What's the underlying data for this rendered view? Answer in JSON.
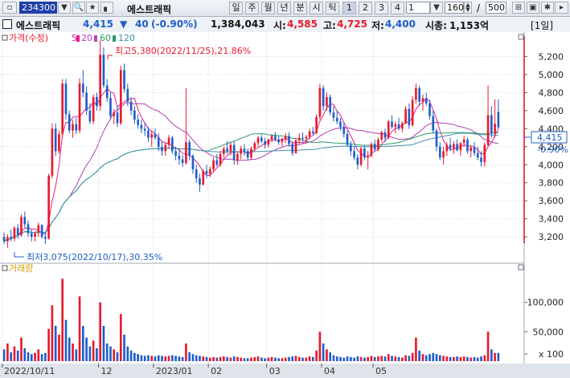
{
  "toolbar": {
    "stock_code": "234300",
    "stock_name": "에스트래픽",
    "period_buttons": [
      "일",
      "주",
      "월",
      "년",
      "분",
      "시",
      "틱"
    ],
    "number_buttons": [
      "1",
      "2",
      "3",
      "4"
    ],
    "interval_value": "1",
    "count_value": "160",
    "slash": "/",
    "total_value": "500"
  },
  "info": {
    "name": "에스트래픽",
    "price": "4,415",
    "arrow": "▼",
    "change": "40",
    "change_pct": "(-0.90%)",
    "volume": "1,384,043",
    "open_label": "시:",
    "open": "4,585",
    "high_label": "고:",
    "high": "4,725",
    "low_label": "저:",
    "low": "4,400",
    "mcap_label": "시총:",
    "mcap": "1,153억",
    "period_tag": "[1일]"
  },
  "legend": {
    "price_label": "가격(수정)",
    "ma": [
      {
        "label": "5",
        "color": "#e0208a"
      },
      {
        "label": "20",
        "color": "#c040c0"
      },
      {
        "label": "60",
        "color": "#2a9a6a"
      },
      {
        "label": "120",
        "color": "#3a8fb0"
      }
    ],
    "volume_label": "거래량"
  },
  "annotations": {
    "high": "최고5,380(2022/11/25),21.86%",
    "low": "최저3,075(2022/10/17),30.35%"
  },
  "price_axis": [
    "5,200",
    "5,000",
    "4,800",
    "4,600",
    "4,400",
    "4,200",
    "4,000",
    "3,800",
    "3,600",
    "3,400",
    "3,200"
  ],
  "current_price_tag": "4,415",
  "current_change_tag": "-0.90%",
  "volume_axis": [
    "100,000",
    "50,000",
    "x 100"
  ],
  "date_axis": [
    "2022/10/11",
    "12",
    "2023/01",
    "02",
    "03",
    "04",
    "05"
  ],
  "colors": {
    "up": "#e8192c",
    "down": "#1f5ec9",
    "ma5": "#e0208a",
    "ma20": "#b040b0",
    "ma60": "#2a9a6a",
    "ma120": "#3a8fb0",
    "highlight": "#e8192c"
  },
  "chart_data": {
    "type": "candlestick",
    "ylim": [
      3050,
      5400
    ],
    "volume_ylim": [
      0,
      150000
    ],
    "volume_unit": "x 100",
    "candles": [
      [
        3200,
        3250,
        3120,
        3150,
        20000
      ],
      [
        3150,
        3230,
        3080,
        3200,
        30000
      ],
      [
        3200,
        3280,
        3150,
        3180,
        15000
      ],
      [
        3180,
        3320,
        3150,
        3300,
        25000
      ],
      [
        3300,
        3340,
        3180,
        3220,
        18000
      ],
      [
        3220,
        3450,
        3200,
        3420,
        40000
      ],
      [
        3420,
        3480,
        3300,
        3340,
        22000
      ],
      [
        3340,
        3380,
        3200,
        3240,
        15000
      ],
      [
        3240,
        3290,
        3150,
        3200,
        12000
      ],
      [
        3200,
        3260,
        3150,
        3240,
        14000
      ],
      [
        3240,
        3360,
        3200,
        3330,
        20000
      ],
      [
        3330,
        3340,
        3180,
        3200,
        12000
      ],
      [
        3200,
        3260,
        3120,
        3180,
        14000
      ],
      [
        3180,
        3900,
        3170,
        3880,
        55000
      ],
      [
        3880,
        4460,
        3850,
        4400,
        95000
      ],
      [
        4400,
        4460,
        4100,
        4150,
        60000
      ],
      [
        4150,
        4380,
        4120,
        4340,
        45000
      ],
      [
        4340,
        4950,
        4300,
        4900,
        140000
      ],
      [
        4900,
        4950,
        4500,
        4560,
        70000
      ],
      [
        4560,
        4600,
        4350,
        4380,
        40000
      ],
      [
        4380,
        4500,
        4300,
        4450,
        30000
      ],
      [
        4450,
        4520,
        4340,
        4380,
        20000
      ],
      [
        4380,
        4960,
        4350,
        4900,
        110000
      ],
      [
        4900,
        5050,
        4750,
        4800,
        60000
      ],
      [
        4800,
        4870,
        4550,
        4600,
        40000
      ],
      [
        4600,
        4680,
        4450,
        4480,
        25000
      ],
      [
        4480,
        4780,
        4450,
        4750,
        35000
      ],
      [
        4750,
        4800,
        4600,
        4650,
        22000
      ],
      [
        4650,
        5380,
        4600,
        5220,
        100000
      ],
      [
        5220,
        5300,
        4850,
        4880,
        60000
      ],
      [
        4880,
        4950,
        4700,
        4740,
        30000
      ],
      [
        4740,
        4800,
        4500,
        4540,
        25000
      ],
      [
        4540,
        4620,
        4450,
        4580,
        20000
      ],
      [
        4580,
        4650,
        4420,
        4460,
        15000
      ],
      [
        4460,
        5100,
        4440,
        5050,
        80000
      ],
      [
        5050,
        5120,
        4800,
        4840,
        45000
      ],
      [
        4840,
        4900,
        4650,
        4700,
        25000
      ],
      [
        4700,
        4750,
        4550,
        4600,
        18000
      ],
      [
        4600,
        4650,
        4450,
        4500,
        14000
      ],
      [
        4500,
        4560,
        4400,
        4440,
        12000
      ],
      [
        4440,
        4500,
        4350,
        4400,
        10000
      ],
      [
        4400,
        4460,
        4320,
        4380,
        9000
      ],
      [
        4380,
        4420,
        4250,
        4300,
        10000
      ],
      [
        4300,
        4380,
        4200,
        4340,
        9000
      ],
      [
        4340,
        4400,
        4280,
        4300,
        8000
      ],
      [
        4300,
        4350,
        4150,
        4200,
        10000
      ],
      [
        4200,
        4260,
        4100,
        4150,
        9000
      ],
      [
        4150,
        4250,
        4100,
        4220,
        8000
      ],
      [
        4220,
        4330,
        4180,
        4300,
        9000
      ],
      [
        4300,
        4320,
        4120,
        4150,
        10000
      ],
      [
        4150,
        4200,
        4050,
        4100,
        9000
      ],
      [
        4100,
        4170,
        4000,
        4060,
        8000
      ],
      [
        4060,
        4110,
        3980,
        4020,
        7000
      ],
      [
        4020,
        4850,
        4000,
        4250,
        30000
      ],
      [
        4250,
        4280,
        4050,
        4100,
        15000
      ],
      [
        4100,
        4120,
        3900,
        3950,
        12000
      ],
      [
        3950,
        4000,
        3800,
        3850,
        10000
      ],
      [
        3850,
        3900,
        3700,
        3780,
        9000
      ],
      [
        3780,
        3950,
        3770,
        3930,
        8000
      ],
      [
        3930,
        4000,
        3850,
        3900,
        7000
      ],
      [
        3900,
        3980,
        3860,
        3950,
        6000
      ],
      [
        3950,
        4080,
        3920,
        4050,
        7000
      ],
      [
        4050,
        4120,
        3980,
        4000,
        6000
      ],
      [
        4000,
        4150,
        3980,
        4120,
        7000
      ],
      [
        4120,
        4200,
        4080,
        4180,
        8000
      ],
      [
        4180,
        4260,
        4120,
        4150,
        7000
      ],
      [
        4150,
        4250,
        4100,
        4220,
        6000
      ],
      [
        4220,
        4260,
        4000,
        4050,
        8000
      ],
      [
        4050,
        4150,
        4000,
        4120,
        7000
      ],
      [
        4120,
        4210,
        4060,
        4180,
        6000
      ],
      [
        4180,
        4230,
        4100,
        4150,
        5000
      ],
      [
        4150,
        4180,
        4050,
        4080,
        5000
      ],
      [
        4080,
        4200,
        4050,
        4180,
        6000
      ],
      [
        4180,
        4260,
        4150,
        4240,
        7000
      ],
      [
        4240,
        4320,
        4200,
        4300,
        8000
      ],
      [
        4300,
        4330,
        4240,
        4260,
        6000
      ],
      [
        4260,
        4300,
        4180,
        4220,
        5000
      ],
      [
        4220,
        4290,
        4190,
        4280,
        6000
      ],
      [
        4280,
        4340,
        4250,
        4320,
        7000
      ],
      [
        4320,
        4360,
        4260,
        4280,
        6000
      ],
      [
        4280,
        4320,
        4220,
        4250,
        5000
      ],
      [
        4250,
        4300,
        4200,
        4280,
        5000
      ],
      [
        4280,
        4350,
        4240,
        4320,
        6000
      ],
      [
        4320,
        4360,
        4200,
        4230,
        7000
      ],
      [
        4230,
        4260,
        4100,
        4130,
        8000
      ],
      [
        4130,
        4300,
        4120,
        4270,
        9000
      ],
      [
        4270,
        4350,
        4230,
        4300,
        7000
      ],
      [
        4300,
        4360,
        4250,
        4290,
        6000
      ],
      [
        4290,
        4330,
        4230,
        4310,
        6000
      ],
      [
        4310,
        4400,
        4280,
        4370,
        8000
      ],
      [
        4370,
        4420,
        4330,
        4350,
        7000
      ],
      [
        4350,
        4560,
        4340,
        4530,
        18000
      ],
      [
        4530,
        4900,
        4500,
        4850,
        50000
      ],
      [
        4850,
        4880,
        4600,
        4650,
        30000
      ],
      [
        4650,
        4800,
        4600,
        4750,
        20000
      ],
      [
        4750,
        4780,
        4550,
        4580,
        15000
      ],
      [
        4580,
        4650,
        4480,
        4520,
        10000
      ],
      [
        4520,
        4600,
        4450,
        4480,
        8000
      ],
      [
        4480,
        4520,
        4380,
        4420,
        7000
      ],
      [
        4420,
        4470,
        4300,
        4340,
        6000
      ],
      [
        4340,
        4380,
        4200,
        4220,
        8000
      ],
      [
        4220,
        4260,
        4100,
        4150,
        7000
      ],
      [
        4150,
        4200,
        4050,
        4080,
        6000
      ],
      [
        4080,
        4120,
        3950,
        4000,
        8000
      ],
      [
        4000,
        4200,
        3980,
        4180,
        7000
      ],
      [
        4180,
        4220,
        4050,
        4080,
        6000
      ],
      [
        4080,
        4150,
        3950,
        4100,
        7000
      ],
      [
        4100,
        4250,
        4080,
        4230,
        9000
      ],
      [
        4230,
        4280,
        4150,
        4170,
        7000
      ],
      [
        4170,
        4300,
        4150,
        4280,
        8000
      ],
      [
        4280,
        4380,
        4250,
        4360,
        9000
      ],
      [
        4360,
        4400,
        4250,
        4300,
        8000
      ],
      [
        4300,
        4500,
        4280,
        4480,
        12000
      ],
      [
        4480,
        4550,
        4400,
        4420,
        9000
      ],
      [
        4420,
        4480,
        4350,
        4450,
        8000
      ],
      [
        4450,
        4520,
        4380,
        4400,
        7000
      ],
      [
        4400,
        4480,
        4360,
        4460,
        6000
      ],
      [
        4460,
        4650,
        4450,
        4620,
        10000
      ],
      [
        4620,
        4680,
        4400,
        4440,
        9000
      ],
      [
        4440,
        4760,
        4420,
        4720,
        14000
      ],
      [
        4720,
        4900,
        4680,
        4850,
        40000
      ],
      [
        4850,
        4880,
        4650,
        4700,
        18000
      ],
      [
        4700,
        4780,
        4600,
        4740,
        12000
      ],
      [
        4740,
        4800,
        4650,
        4680,
        10000
      ],
      [
        4680,
        4720,
        4500,
        4540,
        12000
      ],
      [
        4540,
        4600,
        4350,
        4380,
        14000
      ],
      [
        4380,
        4400,
        4150,
        4200,
        12000
      ],
      [
        4200,
        4250,
        4050,
        4080,
        10000
      ],
      [
        4080,
        4200,
        4000,
        4150,
        9000
      ],
      [
        4150,
        4250,
        4100,
        4220,
        8000
      ],
      [
        4220,
        4300,
        4150,
        4180,
        7000
      ],
      [
        4180,
        4260,
        4120,
        4230,
        7000
      ],
      [
        4230,
        4280,
        4150,
        4160,
        8000
      ],
      [
        4160,
        4250,
        4100,
        4240,
        7000
      ],
      [
        4240,
        4320,
        4200,
        4280,
        8000
      ],
      [
        4280,
        4300,
        4120,
        4150,
        7000
      ],
      [
        4150,
        4220,
        4080,
        4190,
        6000
      ],
      [
        4190,
        4250,
        4100,
        4130,
        7000
      ],
      [
        4130,
        4200,
        4050,
        4080,
        6000
      ],
      [
        4080,
        4150,
        3980,
        4030,
        8000
      ],
      [
        4030,
        4250,
        3980,
        4220,
        10000
      ],
      [
        4220,
        4880,
        4200,
        4550,
        50000
      ],
      [
        4550,
        4650,
        4300,
        4350,
        20000
      ],
      [
        4350,
        4725,
        4300,
        4455,
        14000
      ],
      [
        4585,
        4725,
        4400,
        4415,
        14000
      ]
    ]
  }
}
